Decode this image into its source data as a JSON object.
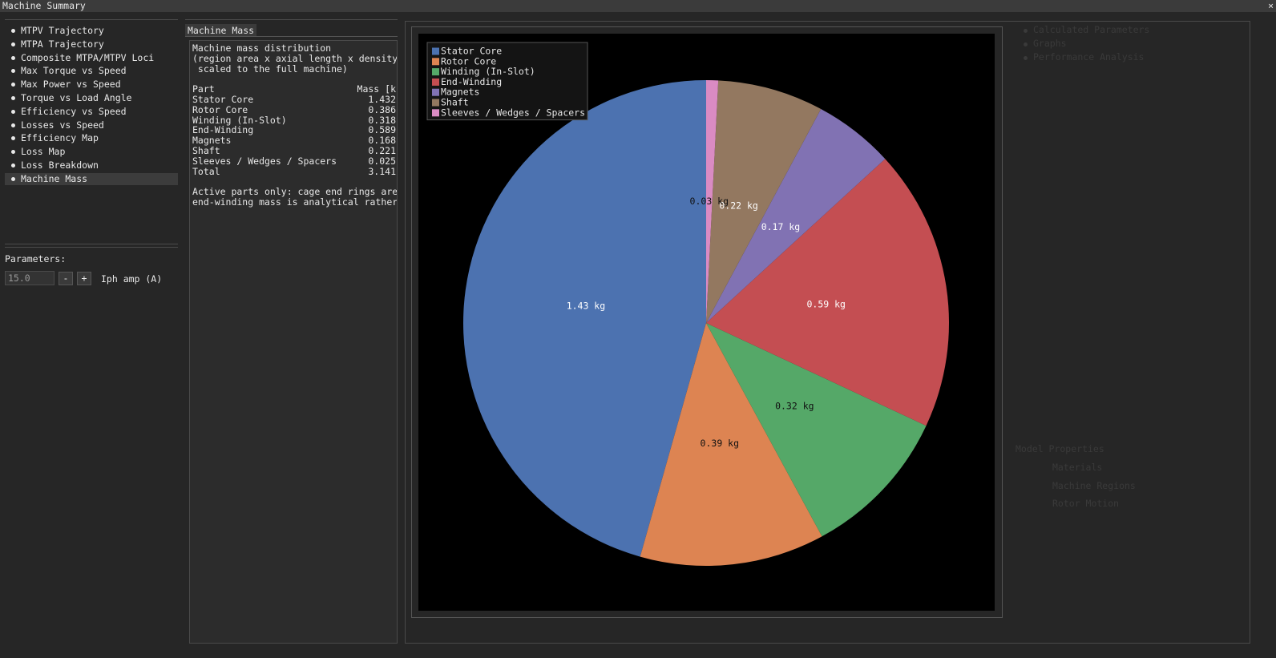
{
  "window": {
    "title": "Machine Summary",
    "close": "×"
  },
  "sidebar": {
    "items": [
      "MTPV Trajectory",
      "MTPA Trajectory",
      "Composite MTPA/MTPV Loci",
      "Max Torque vs Speed",
      "Max Power vs Speed",
      "Torque vs Load Angle",
      "Efficiency vs Speed",
      "Losses vs Speed",
      "Efficiency Map",
      "Loss Map",
      "Loss Breakdown",
      "Machine Mass"
    ],
    "selected": 11,
    "parameters_label": "Parameters:",
    "input_value": "15.0",
    "minus": "-",
    "plus": "+",
    "input_label": "Iph amp (A)"
  },
  "panel": {
    "tab": "Machine Mass",
    "intro": [
      "Machine mass distribution",
      "(region area x axial length x density",
      " scaled to the full machine)"
    ],
    "table": {
      "header": [
        "Part",
        "Mass [k"
      ],
      "rows": [
        [
          "Stator Core",
          "1.432"
        ],
        [
          "Rotor Core",
          "0.386"
        ],
        [
          "Winding (In-Slot)",
          "0.318"
        ],
        [
          "End-Winding",
          "0.589"
        ],
        [
          "Magnets",
          "0.168"
        ],
        [
          "Shaft",
          "0.221"
        ],
        [
          "Sleeves / Wedges / Spacers",
          "0.025"
        ],
        [
          "Total",
          "3.141"
        ]
      ]
    },
    "notes": [
      "Active parts only: cage end rings are",
      "end-winding mass is analytical rather"
    ]
  },
  "pie": {
    "type": "pie",
    "categories": [
      "Stator Core",
      "Rotor Core",
      "Winding (In-Slot)",
      "End-Winding",
      "Magnets",
      "Shaft",
      "Sleeves / Wedges / Spacers"
    ],
    "values": [
      1.432,
      0.386,
      0.318,
      0.589,
      0.168,
      0.221,
      0.025
    ],
    "value_labels": [
      "1.43 kg",
      "0.39 kg",
      "0.32 kg",
      "0.59 kg",
      "0.17 kg",
      "0.22 kg",
      "0.03 kg"
    ],
    "colors": [
      "#4c72b0",
      "#dd8452",
      "#55a868",
      "#c44e52",
      "#8172b3",
      "#937860",
      "#da8bc3"
    ],
    "label_colors": [
      "#ffffff",
      "#111111",
      "#111111",
      "#ffffff",
      "#ffffff",
      "#ffffff",
      "#111111"
    ],
    "legend": "upper left"
  },
  "background": {
    "tree": [
      "Calculated Parameters",
      "Graphs",
      "Performance Analysis"
    ],
    "model_header": "Model Properties",
    "model_items": [
      "Materials",
      "Machine Regions",
      "Rotor Motion"
    ]
  }
}
